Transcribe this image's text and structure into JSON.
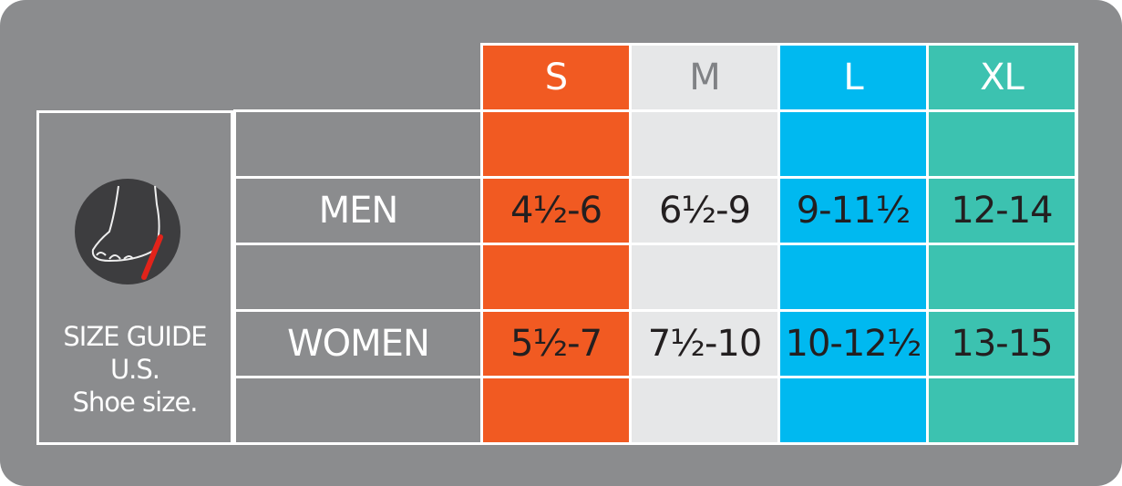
{
  "guide": {
    "lines": [
      "SIZE GUIDE",
      "U.S.",
      "Shoe size."
    ]
  },
  "table": {
    "columns": [
      "S",
      "M",
      "L",
      "XL"
    ],
    "rows": [
      {
        "label": "MEN",
        "cells": [
          "4½-6",
          "6½-9",
          "9-11½",
          "12-14"
        ]
      },
      {
        "label": "WOMEN",
        "cells": [
          "5½-7",
          "7½-10",
          "10-12½",
          "13-15"
        ]
      }
    ]
  }
}
